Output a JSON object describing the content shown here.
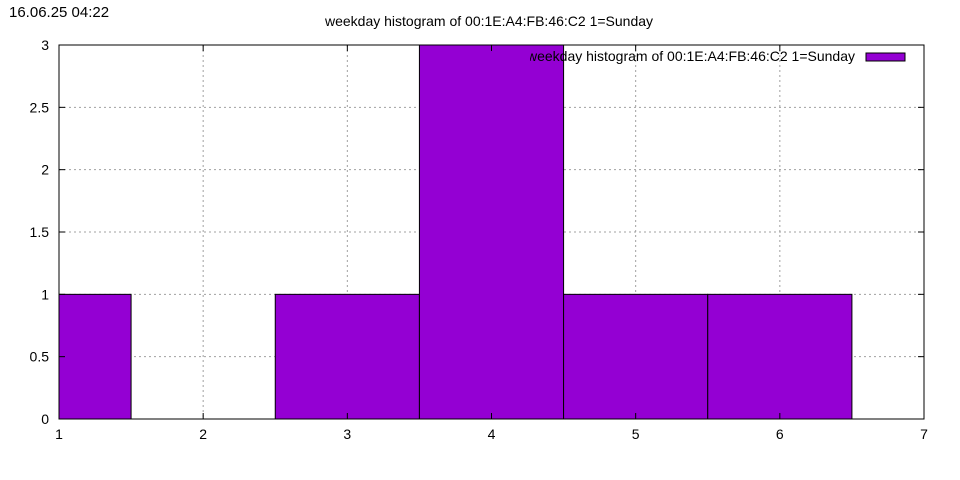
{
  "timestamp": "16.06.25 04:22",
  "chart_data": {
    "type": "bar",
    "title": "weekday histogram of 00:1E:A4:FB:46:C2 1=Sunday",
    "xlabel": "",
    "ylabel": "",
    "xlim": [
      1,
      7
    ],
    "ylim": [
      0,
      3
    ],
    "x_ticks": [
      "1",
      "2",
      "3",
      "4",
      "5",
      "6",
      "7"
    ],
    "y_ticks": [
      "0",
      "0.5",
      "1",
      "1.5",
      "2",
      "2.5",
      "3"
    ],
    "grid": true,
    "legend_position": "top-right",
    "bar_color": "#9400d3",
    "series": [
      {
        "name": "weekday histogram of 00:1E:A4:FB:46:C2 1=Sunday",
        "bars": [
          {
            "x": 1,
            "value": 1
          },
          {
            "x": 3,
            "value": 1
          },
          {
            "x": 4,
            "value": 3
          },
          {
            "x": 5,
            "value": 1
          },
          {
            "x": 6,
            "value": 1
          }
        ]
      }
    ]
  }
}
